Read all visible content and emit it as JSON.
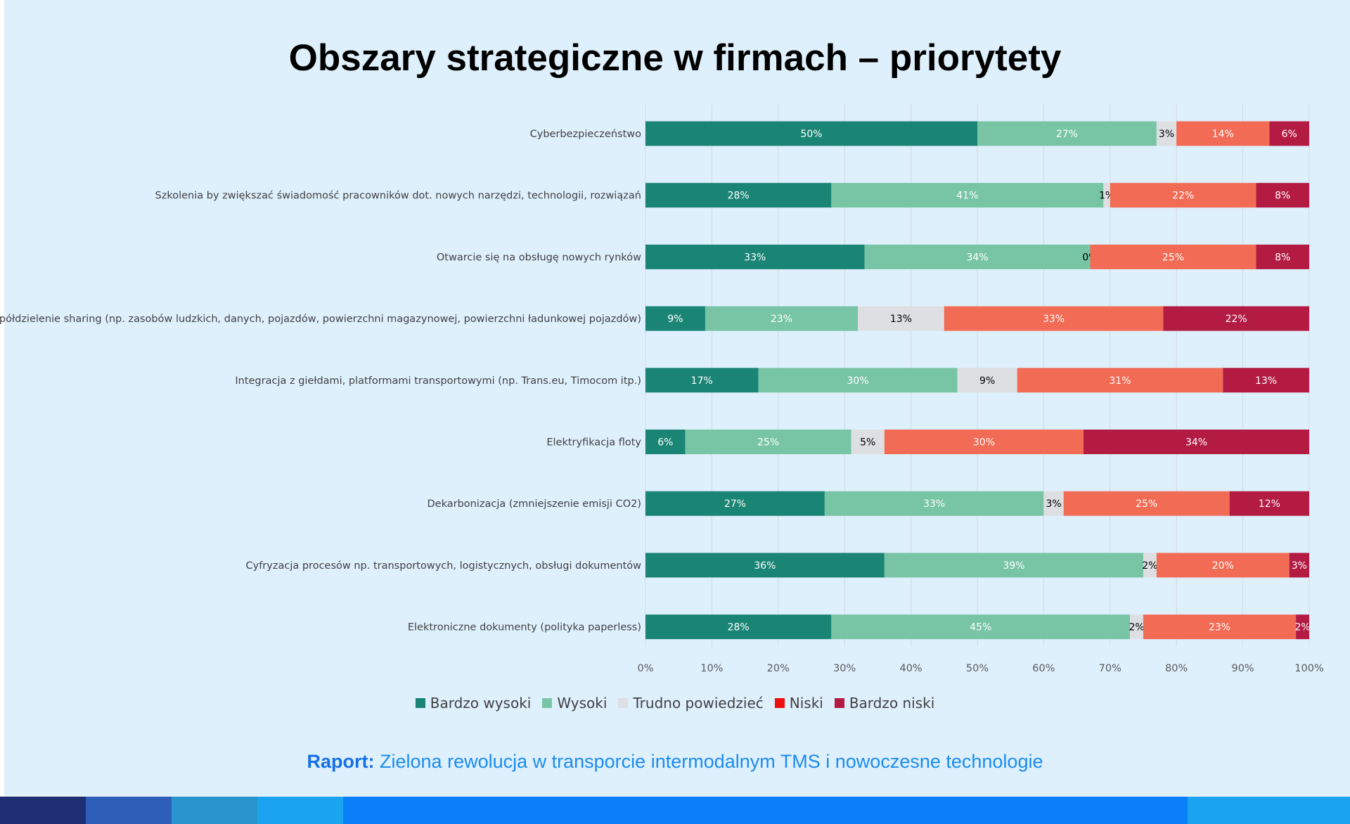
{
  "title": "Obszary strategiczne w firmach – priorytety",
  "footer": {
    "label": "Raport:",
    "text": " Zielona rewolucja w transporcie intermodalnym TMS i nowoczesne technologie"
  },
  "colors": {
    "background": "#dff0fd",
    "series": [
      "#1a8575",
      "#78c5a6",
      "#dedfe2",
      "#f26b55",
      "#b31b43"
    ],
    "legend_swatches": [
      "#1a8575",
      "#78c5a6",
      "#dedfe2",
      "#ee0e0e",
      "#b31b43"
    ],
    "stripe": [
      "#1f2f73",
      "#2d5fb8",
      "#2a94cd",
      "#1aa4ef",
      "#0b7ffa",
      "#1aa4ef"
    ]
  },
  "chart_data": {
    "type": "bar",
    "orientation": "horizontal",
    "stacked": true,
    "percent": true,
    "categories": [
      "Cyberbezpieczeństwo",
      "Szkolenia by zwiększać świadomość pracowników dot. nowych narzędzi, technologii, rozwiązań",
      "Otwarcie się na obsługę nowych rynków",
      "Współdzielenie sharing (np. zasobów ludzkich, danych, pojazdów, powierzchni magazynowej, powierzchni ładunkowej pojazdów)",
      "Integracja z giełdami, platformami transportowymi (np. Trans.eu, Timocom itp.)",
      "Elektryfikacja floty",
      "Dekarbonizacja (zmniejszenie emisji CO2)",
      "Cyfryzacja procesów np. transportowych, logistycznych, obsługi dokumentów",
      "Elektroniczne dokumenty (polityka paperless)"
    ],
    "series": [
      {
        "name": "Bardzo wysoki",
        "values": [
          50,
          28,
          33,
          9,
          17,
          6,
          27,
          36,
          28
        ]
      },
      {
        "name": "Wysoki",
        "values": [
          27,
          41,
          34,
          23,
          30,
          25,
          33,
          39,
          45
        ]
      },
      {
        "name": "Trudno powiedzieć",
        "values": [
          3,
          1,
          0,
          13,
          9,
          5,
          3,
          2,
          2
        ]
      },
      {
        "name": "Niski",
        "values": [
          14,
          22,
          25,
          33,
          31,
          30,
          25,
          20,
          23
        ]
      },
      {
        "name": "Bardzo niski",
        "values": [
          6,
          8,
          8,
          22,
          13,
          34,
          12,
          3,
          2
        ]
      }
    ],
    "xticks": [
      "0%",
      "10%",
      "20%",
      "30%",
      "40%",
      "50%",
      "60%",
      "70%",
      "80%",
      "90%",
      "100%"
    ],
    "xlim": [
      0,
      100
    ],
    "grid": true,
    "legend_position": "bottom"
  }
}
